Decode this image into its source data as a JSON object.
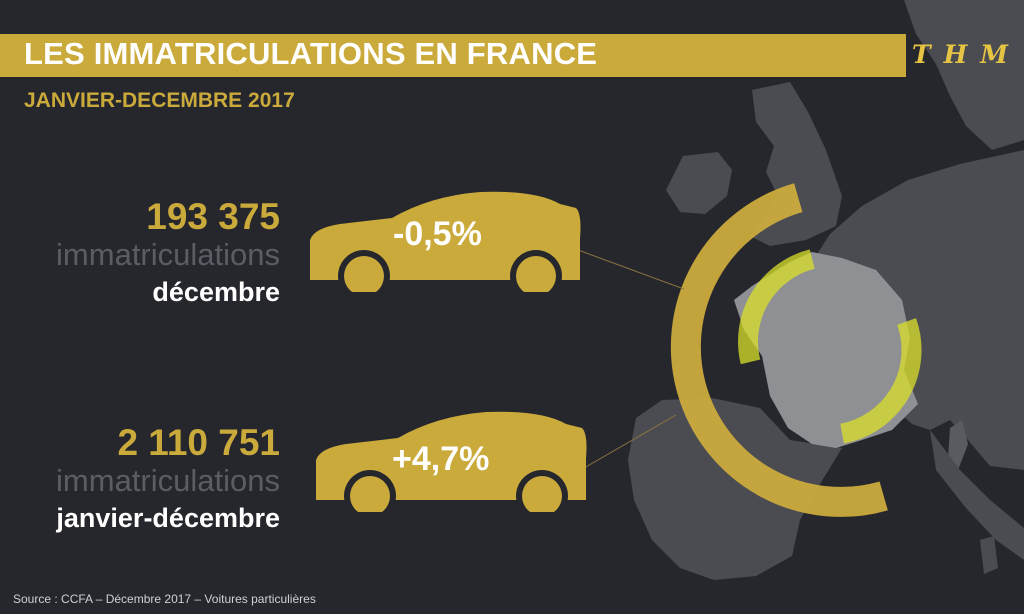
{
  "header": {
    "title": "LES IMMATRICULATIONS EN FRANCE",
    "subtitle": "JANVIER-DECEMBRE 2017",
    "brand": "THM"
  },
  "stats": [
    {
      "number": "193 375",
      "unit": "immatriculations",
      "period": "décembre",
      "change": "-0,5%"
    },
    {
      "number": "2 110 751",
      "unit": "immatriculations",
      "period": "janvier-décembre",
      "change": "+4,7%"
    }
  ],
  "footer": {
    "source": "Source : CCFA – Décembre 2017 – Voitures particulières"
  },
  "colors": {
    "background": "#26272d",
    "gold": "#cbaa3c",
    "lime": "#d9e02a",
    "land": "#4b4c52",
    "france": "#8f9094"
  },
  "icons": [
    "car-icon",
    "europe-map",
    "ring-arcs"
  ]
}
